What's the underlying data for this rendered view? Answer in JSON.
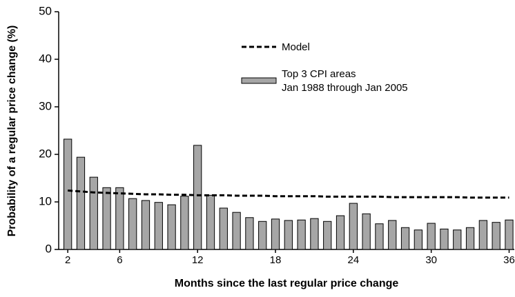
{
  "chart_data": {
    "type": "bar",
    "x_label": "Months since the last regular price change",
    "y_label": "Probability of a regular price change (%)",
    "x": [
      2,
      3,
      4,
      5,
      6,
      7,
      8,
      9,
      10,
      11,
      12,
      13,
      14,
      15,
      16,
      17,
      18,
      19,
      20,
      21,
      22,
      23,
      24,
      25,
      26,
      27,
      28,
      29,
      30,
      31,
      32,
      33,
      34,
      35,
      36
    ],
    "xlim": [
      1.3,
      36.4
    ],
    "xticks": [
      2,
      6,
      12,
      18,
      24,
      30,
      36
    ],
    "ylim": [
      0,
      50
    ],
    "yticks": [
      0,
      10,
      20,
      30,
      40,
      50
    ],
    "grid": false,
    "series": [
      {
        "name": "Model",
        "type": "line",
        "color": "#000000",
        "dashed": true,
        "values": [
          12.4,
          12.2,
          12.0,
          11.9,
          11.8,
          11.7,
          11.6,
          11.6,
          11.5,
          11.5,
          11.4,
          11.4,
          11.4,
          11.3,
          11.3,
          11.3,
          11.2,
          11.2,
          11.2,
          11.2,
          11.1,
          11.1,
          11.1,
          11.1,
          11.1,
          11.0,
          11.0,
          11.0,
          11.0,
          11.0,
          11.0,
          10.9,
          10.9,
          10.9,
          10.9
        ]
      },
      {
        "name": "Top 3 CPI areas\nJan 1988 through Jan 2005",
        "type": "bar",
        "color": "#a6a6a6",
        "values": [
          23.2,
          19.4,
          15.2,
          13.0,
          13.0,
          10.7,
          10.3,
          9.9,
          9.4,
          11.2,
          21.9,
          11.4,
          8.7,
          7.8,
          6.7,
          5.9,
          6.4,
          6.1,
          6.2,
          6.5,
          5.9,
          7.1,
          9.7,
          7.5,
          5.4,
          6.1,
          4.6,
          4.1,
          5.5,
          4.3,
          4.1,
          4.6,
          6.1,
          5.7,
          6.2
        ]
      }
    ]
  }
}
